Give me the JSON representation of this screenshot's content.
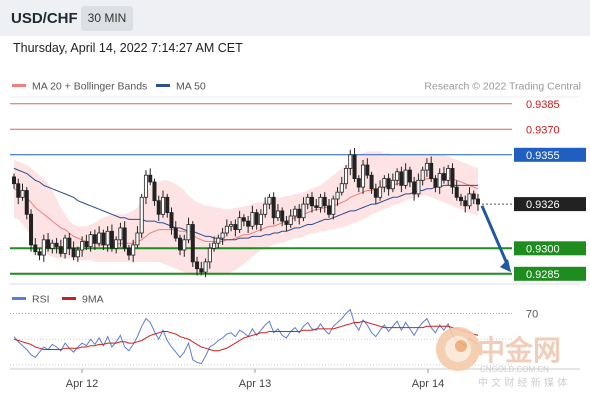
{
  "header": {
    "symbol": "USD/CHF",
    "timeframe": "30 MIN",
    "datetime": "Thursday, April 14, 2022 7:14:27 AM CET"
  },
  "legend": {
    "ma20_label": "MA 20 + Bollinger Bands",
    "ma50_label": "MA 50",
    "credit": "Research © 2022 Trading Central",
    "rsi_label": "RSI",
    "rsi_ma_label": "9MA"
  },
  "colors": {
    "ma20": "#f08080",
    "ma50": "#2c4f8f",
    "bollinger_fill": "#fde3e3",
    "resistance": "#e06060",
    "pivot": "#1f5fbf",
    "support": "#1e8c1e",
    "candle": "#222222",
    "arrow": "#1e5a9c",
    "rsi_line": "#5b7fd6",
    "rsi_ma": "#cc2020"
  },
  "watermark": {
    "brand": "中金网",
    "site": "CNGOLD.COM.CN",
    "tagline": "中 文 财 经 新 媒 体"
  },
  "chart_data": {
    "type": "candlestick",
    "timeframe": "30 MIN",
    "ylim": [
      9279,
      9389
    ],
    "xlabels": [
      "Apr 12",
      "Apr 13",
      "Apr 14"
    ],
    "price_levels": [
      {
        "label": "0.9385",
        "value": 9385,
        "kind": "resistance"
      },
      {
        "label": "0.9370",
        "value": 9370,
        "kind": "resistance"
      },
      {
        "label": "0.9355",
        "value": 9355,
        "kind": "pivot"
      },
      {
        "label": "0.9326",
        "value": 9326,
        "kind": "last"
      },
      {
        "label": "0.9300",
        "value": 9300,
        "kind": "support"
      },
      {
        "label": "0.9285",
        "value": 9285,
        "kind": "support"
      }
    ],
    "close": [
      9338,
      9330,
      9334,
      9320,
      9302,
      9298,
      9296,
      9305,
      9300,
      9303,
      9301,
      9297,
      9306,
      9300,
      9295,
      9299,
      9304,
      9301,
      9308,
      9303,
      9309,
      9302,
      9310,
      9300,
      9305,
      9312,
      9300,
      9296,
      9302,
      9309,
      9330,
      9343,
      9339,
      9328,
      9320,
      9330,
      9321,
      9312,
      9306,
      9299,
      9305,
      9314,
      9292,
      9288,
      9286,
      9292,
      9300,
      9303,
      9306,
      9309,
      9313,
      9314,
      9311,
      9318,
      9316,
      9313,
      9321,
      9314,
      9320,
      9326,
      9330,
      9318,
      9322,
      9316,
      9314,
      9319,
      9323,
      9318,
      9326,
      9330,
      9325,
      9324,
      9330,
      9325,
      9320,
      9329,
      9333,
      9338,
      9347,
      9355,
      9341,
      9336,
      9349,
      9343,
      9335,
      9330,
      9336,
      9341,
      9335,
      9340,
      9345,
      9337,
      9346,
      9339,
      9332,
      9340,
      9346,
      9350,
      9341,
      9336,
      9344,
      9340,
      9347,
      9336,
      9330,
      9328,
      9325,
      9332,
      9329,
      9326
    ],
    "ma20": [
      9335,
      9334,
      9332,
      9330,
      9327,
      9324,
      9322,
      9320,
      9318,
      9316,
      9314,
      9312,
      9311,
      9309,
      9307,
      9306,
      9305,
      9304,
      9303,
      9303,
      9302,
      9302,
      9302,
      9302,
      9302,
      9303,
      9303,
      9303,
      9303,
      9304,
      9305,
      9307,
      9309,
      9310,
      9311,
      9311,
      9311,
      9311,
      9311,
      9310,
      9310,
      9309,
      9308,
      9306,
      9305,
      9304,
      9304,
      9304,
      9304,
      9304,
      9305,
      9305,
      9306,
      9307,
      9308,
      9308,
      9309,
      9310,
      9311,
      9312,
      9313,
      9313,
      9314,
      9315,
      9316,
      9317,
      9318,
      9319,
      9320,
      9321,
      9322,
      9323,
      9323,
      9324,
      9324,
      9325,
      9326,
      9327,
      9328,
      9330,
      9331,
      9332,
      9333,
      9334,
      9334,
      9335,
      9335,
      9336,
      9337,
      9337,
      9338,
      9338,
      9339,
      9339,
      9339,
      9340,
      9340,
      9341,
      9341,
      9341,
      9341,
      9342,
      9342,
      9341,
      9340,
      9339,
      9338,
      9337,
      9336,
      9335
    ],
    "bb_upper": [
      9352,
      9351,
      9350,
      9349,
      9347,
      9345,
      9343,
      9341,
      9338,
      9334,
      9329,
      9324,
      9320,
      9316,
      9314,
      9313,
      9313,
      9313,
      9314,
      9315,
      9317,
      9318,
      9319,
      9320,
      9320,
      9320,
      9320,
      9321,
      9322,
      9324,
      9328,
      9332,
      9336,
      9338,
      9339,
      9340,
      9340,
      9339,
      9338,
      9336,
      9334,
      9331,
      9329,
      9327,
      9326,
      9325,
      9325,
      9324,
      9324,
      9323,
      9323,
      9323,
      9324,
      9324,
      9325,
      9325,
      9326,
      9327,
      9327,
      9328,
      9329,
      9329,
      9330,
      9330,
      9331,
      9331,
      9332,
      9332,
      9333,
      9334,
      9335,
      9336,
      9337,
      9339,
      9341,
      9343,
      9345,
      9347,
      9349,
      9352,
      9354,
      9355,
      9356,
      9357,
      9357,
      9357,
      9357,
      9356,
      9356,
      9355,
      9355,
      9355,
      9355,
      9355,
      9355,
      9355,
      9355,
      9355,
      9355,
      9355,
      9355,
      9355,
      9354,
      9353,
      9352,
      9351,
      9350,
      9349,
      9348,
      9347
    ],
    "bb_lower": [
      9318,
      9317,
      9314,
      9311,
      9307,
      9303,
      9300,
      9298,
      9296,
      9295,
      9294,
      9294,
      9294,
      9294,
      9293,
      9293,
      9293,
      9293,
      9293,
      9292,
      9292,
      9292,
      9292,
      9292,
      9292,
      9292,
      9292,
      9292,
      9292,
      9292,
      9292,
      9292,
      9292,
      9292,
      9292,
      9291,
      9290,
      9289,
      9288,
      9287,
      9286,
      9285,
      9284,
      9284,
      9284,
      9284,
      9284,
      9284,
      9284,
      9284,
      9285,
      9286,
      9287,
      9289,
      9291,
      9293,
      9295,
      9297,
      9299,
      9300,
      9301,
      9302,
      9303,
      9303,
      9304,
      9305,
      9306,
      9306,
      9307,
      9308,
      9309,
      9309,
      9310,
      9310,
      9311,
      9311,
      9312,
      9312,
      9313,
      9314,
      9315,
      9316,
      9317,
      9318,
      9320,
      9321,
      9322,
      9323,
      9324,
      9325,
      9326,
      9327,
      9328,
      9329,
      9330,
      9330,
      9331,
      9331,
      9330,
      9329,
      9328,
      9327,
      9326,
      9325,
      9324,
      9323,
      9322,
      9321,
      9320,
      9319
    ],
    "ma50": [
      9347,
      9346,
      9345,
      9344,
      9342,
      9340,
      9339,
      9337,
      9336,
      9335,
      9334,
      9333,
      9332,
      9331,
      9330,
      9328,
      9327,
      9326,
      9325,
      9324,
      9323,
      9322,
      9321,
      9320,
      9319,
      9318,
      9318,
      9317,
      9317,
      9317,
      9317,
      9316,
      9316,
      9316,
      9315,
      9315,
      9314,
      9313,
      9312,
      9312,
      9311,
      9310,
      9310,
      9309,
      9308,
      9307,
      9307,
      9306,
      9306,
      9305,
      9305,
      9305,
      9305,
      9306,
      9306,
      9306,
      9307,
      9307,
      9307,
      9308,
      9308,
      9309,
      9309,
      9310,
      9310,
      9311,
      9312,
      9312,
      9313,
      9314,
      9314,
      9315,
      9316,
      9317,
      9317,
      9318,
      9319,
      9320,
      9321,
      9322,
      9322,
      9323,
      9324,
      9325,
      9326,
      9326,
      9327,
      9328,
      9329,
      9330,
      9330,
      9331,
      9332,
      9332,
      9333,
      9334,
      9334,
      9335,
      9335,
      9336,
      9336,
      9337,
      9337,
      9337,
      9337,
      9337,
      9337,
      9337,
      9337,
      9337
    ],
    "forecast_arrow": {
      "from": 9325,
      "to": 9286
    },
    "rsi": {
      "levels": [
        {
          "label": "70",
          "value": 70
        }
      ],
      "ylim": [
        30,
        75
      ],
      "rsi": [
        52,
        48,
        45,
        42,
        38,
        36,
        40,
        44,
        42,
        46,
        44,
        41,
        47,
        43,
        40,
        44,
        47,
        45,
        50,
        46,
        51,
        45,
        52,
        44,
        48,
        53,
        44,
        41,
        46,
        52,
        60,
        66,
        63,
        56,
        50,
        57,
        49,
        44,
        40,
        36,
        40,
        47,
        34,
        32,
        31,
        37,
        44,
        46,
        49,
        51,
        54,
        55,
        52,
        57,
        55,
        52,
        58,
        53,
        57,
        61,
        64,
        55,
        58,
        53,
        51,
        56,
        59,
        55,
        60,
        63,
        58,
        57,
        62,
        57,
        54,
        60,
        63,
        66,
        70,
        73,
        62,
        57,
        65,
        61,
        55,
        52,
        57,
        61,
        56,
        60,
        64,
        57,
        63,
        58,
        53,
        59,
        63,
        66,
        59,
        55,
        61,
        57,
        62,
        53,
        49,
        47,
        45,
        51,
        48,
        46
      ],
      "rsi_ma": [
        50,
        49,
        48,
        47,
        46,
        44,
        43,
        42,
        42,
        42,
        42,
        42,
        43,
        43,
        43,
        43,
        44,
        44,
        45,
        45,
        46,
        46,
        47,
        47,
        47,
        48,
        48,
        47,
        47,
        48,
        49,
        51,
        53,
        54,
        55,
        56,
        56,
        55,
        54,
        52,
        51,
        50,
        48,
        46,
        44,
        43,
        42,
        41,
        41,
        42,
        43,
        45,
        47,
        49,
        51,
        52,
        53,
        54,
        55,
        55,
        56,
        56,
        56,
        56,
        56,
        56,
        56,
        56,
        57,
        57,
        57,
        58,
        58,
        58,
        58,
        58,
        59,
        60,
        61,
        62,
        63,
        63,
        64,
        63,
        62,
        61,
        60,
        59,
        59,
        59,
        59,
        59,
        59,
        59,
        59,
        59,
        59,
        60,
        60,
        60,
        60,
        60,
        60,
        59,
        58,
        57,
        56,
        55,
        54,
        53
      ]
    }
  }
}
